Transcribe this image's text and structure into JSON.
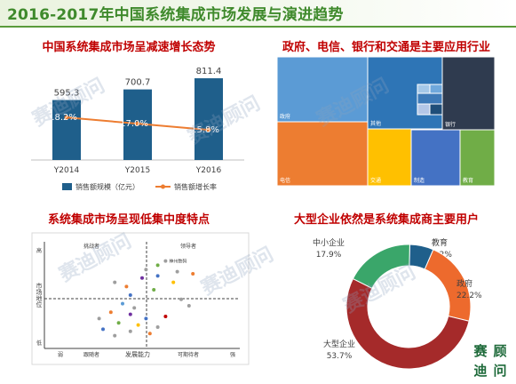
{
  "page": {
    "title": "2016-2017年中国系统集成市场发展与演进趋势",
    "watermark": "赛迪顾问",
    "logo_chars": [
      "赛",
      "顾",
      "迪",
      "问"
    ]
  },
  "chart_data": [
    {
      "id": "bar-line",
      "type": "bar",
      "title": "中国系统集成市场呈减速增长态势",
      "categories": [
        "Y2014",
        "Y2015",
        "Y2016"
      ],
      "series": [
        {
          "name": "销售额规模（亿元）",
          "kind": "bar",
          "values": [
            595.3,
            700.7,
            811.4
          ],
          "labels": [
            "595.3",
            "700.7",
            "811.4"
          ],
          "color": "#1f5f8b"
        },
        {
          "name": "销售额增长率",
          "kind": "line",
          "values": [
            18.2,
            17.0,
            15.8
          ],
          "labels": [
            "18.2%",
            "17.0%",
            "15.8%"
          ],
          "color": "#ed7d31"
        }
      ],
      "legend": "bottom"
    },
    {
      "id": "treemap",
      "type": "treemap",
      "title": "政府、电信、银行和交通是主要应用行业",
      "items": [
        {
          "name": "政府",
          "color": "#5b9bd5"
        },
        {
          "name": "其他",
          "color": "#2e75b6"
        },
        {
          "name": "银行",
          "color": "#2f3b4f"
        },
        {
          "name": "电信",
          "color": "#ed7d31"
        },
        {
          "name": "交通",
          "color": "#ffc000"
        },
        {
          "name": "制造",
          "color": "#4472c4"
        },
        {
          "name": "教育",
          "color": "#70ad47"
        },
        {
          "name": "",
          "color": "#bdd7ee"
        },
        {
          "name": "",
          "color": "#a5c8e8"
        },
        {
          "name": "",
          "color": "#6fa8dc"
        },
        {
          "name": "",
          "color": "#3d7ab8"
        },
        {
          "name": "",
          "color": "#b4c7e7"
        },
        {
          "name": "",
          "color": "#1f4e79"
        }
      ]
    },
    {
      "id": "scatter",
      "type": "scatter",
      "title": "系统集成市场呈现低集中度特点",
      "xlabel": "发展能力",
      "ylabel": "市场地位",
      "x_ticks": [
        "弱",
        "强"
      ],
      "y_ticks": [
        "高",
        "低"
      ],
      "quadrants": [
        "挑战者",
        "领导者",
        "跟随者",
        "可期待者"
      ],
      "points": [
        {
          "label": "神州数码",
          "x": 0.62,
          "y": 0.82,
          "color": "#9e9e9e"
        },
        {
          "label": "",
          "x": 0.58,
          "y": 0.78,
          "color": "#70ad47"
        },
        {
          "label": "",
          "x": 0.52,
          "y": 0.74,
          "color": "#9e9e9e"
        },
        {
          "label": "",
          "x": 0.68,
          "y": 0.72,
          "color": "#9e9e9e"
        },
        {
          "label": "",
          "x": 0.76,
          "y": 0.7,
          "color": "#ed7d31"
        },
        {
          "label": "",
          "x": 0.58,
          "y": 0.68,
          "color": "#4472c4"
        },
        {
          "label": "",
          "x": 0.5,
          "y": 0.66,
          "color": "#7030a0"
        },
        {
          "label": "",
          "x": 0.66,
          "y": 0.62,
          "color": "#ffc000"
        },
        {
          "label": "",
          "x": 0.36,
          "y": 0.62,
          "color": "#9e9e9e"
        },
        {
          "label": "",
          "x": 0.42,
          "y": 0.58,
          "color": "#ed7d31"
        },
        {
          "label": "",
          "x": 0.56,
          "y": 0.55,
          "color": "#70ad47"
        },
        {
          "label": "",
          "x": 0.44,
          "y": 0.5,
          "color": "#4472c4"
        },
        {
          "label": "",
          "x": 0.7,
          "y": 0.46,
          "color": "#9e9e9e"
        },
        {
          "label": "",
          "x": 0.74,
          "y": 0.4,
          "color": "#9e9e9e"
        },
        {
          "label": "",
          "x": 0.4,
          "y": 0.42,
          "color": "#5b9bd5"
        },
        {
          "label": "",
          "x": 0.46,
          "y": 0.38,
          "color": "#9e9e9e"
        },
        {
          "label": "",
          "x": 0.34,
          "y": 0.34,
          "color": "#ed7d31"
        },
        {
          "label": "",
          "x": 0.44,
          "y": 0.32,
          "color": "#7030a0"
        },
        {
          "label": "",
          "x": 0.28,
          "y": 0.28,
          "color": "#9e9e9e"
        },
        {
          "label": "",
          "x": 0.52,
          "y": 0.28,
          "color": "#4472c4"
        },
        {
          "label": "",
          "x": 0.62,
          "y": 0.3,
          "color": "#c00000"
        },
        {
          "label": "",
          "x": 0.38,
          "y": 0.24,
          "color": "#70ad47"
        },
        {
          "label": "",
          "x": 0.48,
          "y": 0.22,
          "color": "#ffc000"
        },
        {
          "label": "",
          "x": 0.58,
          "y": 0.2,
          "color": "#9e9e9e"
        },
        {
          "label": "",
          "x": 0.3,
          "y": 0.18,
          "color": "#4472c4"
        },
        {
          "label": "",
          "x": 0.44,
          "y": 0.16,
          "color": "#9e9e9e"
        },
        {
          "label": "",
          "x": 0.54,
          "y": 0.14,
          "color": "#ed7d31"
        },
        {
          "label": "",
          "x": 0.36,
          "y": 0.12,
          "color": "#9e9e9e"
        }
      ]
    },
    {
      "id": "donut",
      "type": "pie",
      "title": "大型企业依然是系统集成商主要用户",
      "slices": [
        {
          "name": "教育",
          "value": 6.2,
          "label": "6.2%",
          "color": "#1f5f8b"
        },
        {
          "name": "政府",
          "value": 22.2,
          "label": "22.2%",
          "color": "#ed6a2d"
        },
        {
          "name": "大型企业",
          "value": 53.7,
          "label": "53.7%",
          "color": "#a52a2a"
        },
        {
          "name": "中小企业",
          "value": 17.9,
          "label": "17.9%",
          "color": "#3aa66a"
        }
      ]
    }
  ]
}
